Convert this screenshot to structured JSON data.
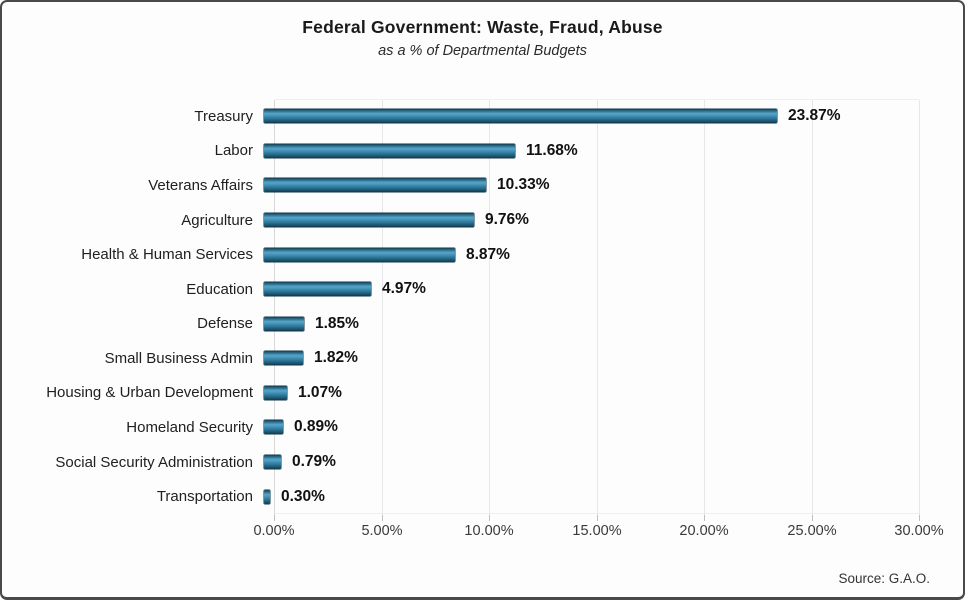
{
  "header": {
    "title": "Federal Government: Waste, Fraud, Abuse",
    "subtitle": "as a % of Departmental Budgets"
  },
  "footer": {
    "source": "Source: G.A.O."
  },
  "chart_data": {
    "type": "bar",
    "orientation": "horizontal",
    "title": "Federal Government: Waste, Fraud, Abuse",
    "subtitle": "as a % of Departmental Budgets",
    "source": "Source: G.A.O.",
    "categories": [
      "Treasury",
      "Labor",
      "Veterans Affairs",
      "Agriculture",
      "Health & Human Services",
      "Education",
      "Defense",
      "Small Business Admin",
      "Housing & Urban Development",
      "Homeland Security",
      "Social Security Administration",
      "Transportation"
    ],
    "values": [
      23.87,
      11.68,
      10.33,
      9.76,
      8.87,
      4.97,
      1.85,
      1.82,
      1.07,
      0.89,
      0.79,
      0.3
    ],
    "value_labels": [
      "23.87%",
      "11.68%",
      "10.33%",
      "9.76%",
      "8.87%",
      "4.97%",
      "1.85%",
      "1.82%",
      "1.07%",
      "0.89%",
      "0.79%",
      "0.30%"
    ],
    "xlim": [
      0,
      30
    ],
    "x_ticks": [
      0,
      5,
      10,
      15,
      20,
      25,
      30
    ],
    "x_tick_labels": [
      "0.00%",
      "5.00%",
      "10.00%",
      "15.00%",
      "20.00%",
      "25.00%",
      "30.00%"
    ],
    "grid": true,
    "legend": "none",
    "bar_color_top": "#143f52",
    "bar_color_highlight": "#58a4c7",
    "bar_color_bottom": "#123a4e",
    "gridline_color": "#e7e7e7",
    "text_color": "#1f1f1f"
  }
}
